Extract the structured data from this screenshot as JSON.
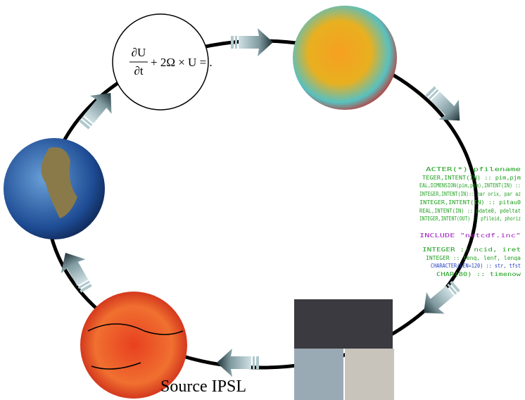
{
  "equation": {
    "numerator": "∂U",
    "denominator": "∂t",
    "rest": "+ 2Ω × U = ."
  },
  "code": {
    "lines": [
      "ACTER(*) pfilename",
      "TEGER,INTENT(IN) :: pim,pjm",
      "EAL,DIMENSION(pim,pjm),INTENT(IN) ::",
      "INTEGER,INTENT(IN):: par orix, par az",
      "INTEGER,INTENT(IN) :: pitau0",
      "REAL,INTENT(IN) :: pdate0, pdeltat",
      "INTEGER,INTENT(OUT) :: pfileid, phoriz",
      "INCLUDE \"netcdf.inc\"",
      "INTEGER :: ncid, iret",
      "INTEGER :: lenq, lenf, lenqa",
      "CHARACTER(LEN=120) :: str, tfst",
      "CHAR(80) :: timenow"
    ]
  },
  "source": "Source IPSL"
}
